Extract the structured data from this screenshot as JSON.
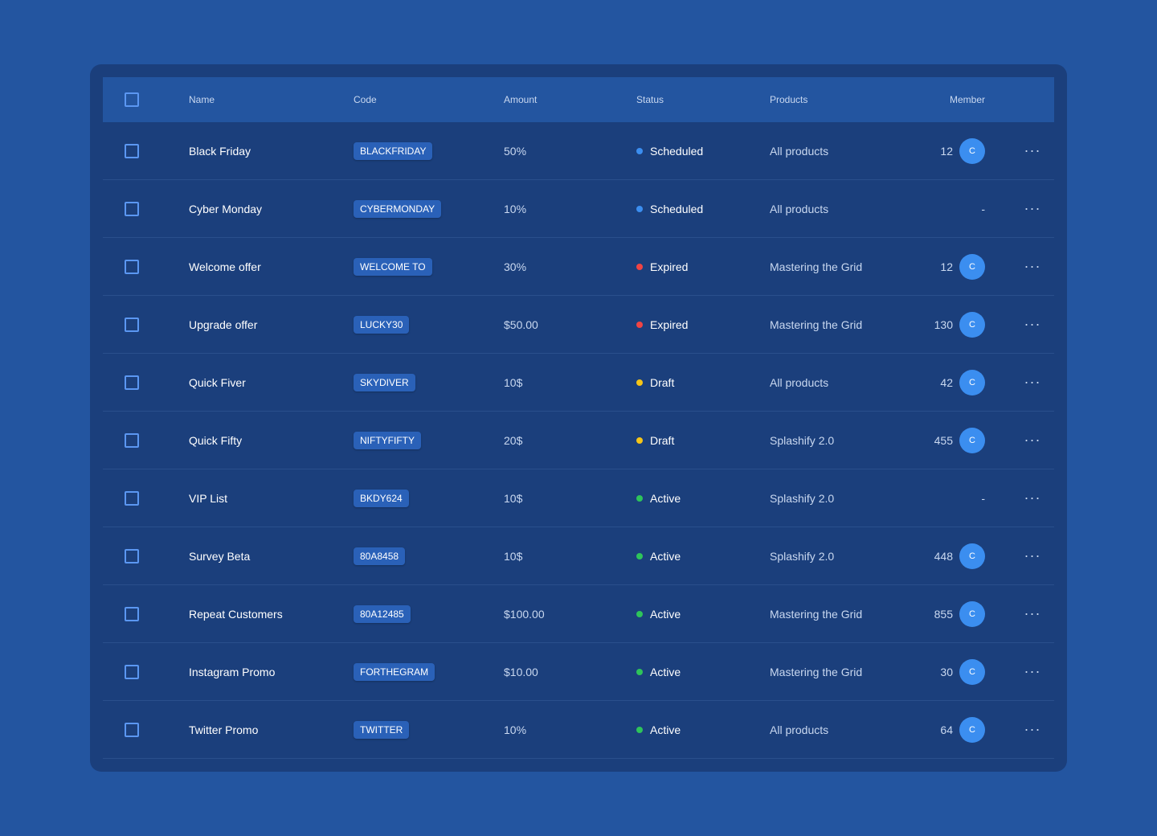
{
  "colors": {
    "page_bg": "#2355a0",
    "card_bg": "#1b3f7c",
    "header_bg": "#2355a0",
    "accent": "#3b8ef0",
    "scheduled": "#3b8ef0",
    "expired": "#f04444",
    "draft": "#f5c518",
    "active": "#2ec45a"
  },
  "columns": {
    "name": "Name",
    "code": "Code",
    "amount": "Amount",
    "status": "Status",
    "products": "Products",
    "member": "Member"
  },
  "rows": [
    {
      "name": "Black Friday",
      "code": "BLACKFRIDAY",
      "amount": "50%",
      "status": "Scheduled",
      "status_color": "scheduled",
      "products": "All products",
      "member_count": "12",
      "avatar": "C"
    },
    {
      "name": "Cyber Monday",
      "code": "CYBERMONDAY",
      "amount": "10%",
      "status": "Scheduled",
      "status_color": "scheduled",
      "products": "All products",
      "member_count": "-",
      "avatar": null
    },
    {
      "name": "Welcome offer",
      "code": "WELCOME TO",
      "amount": "30%",
      "status": "Expired",
      "status_color": "expired",
      "products": "Mastering the Grid",
      "member_count": "12",
      "avatar": "C"
    },
    {
      "name": "Upgrade offer",
      "code": "LUCKY30",
      "amount": "$50.00",
      "status": "Expired",
      "status_color": "expired",
      "products": "Mastering the Grid",
      "member_count": "130",
      "avatar": "C"
    },
    {
      "name": "Quick Fiver",
      "code": "SKYDIVER",
      "amount": "10$",
      "status": "Draft",
      "status_color": "draft",
      "products": "All products",
      "member_count": "42",
      "avatar": "C"
    },
    {
      "name": "Quick Fifty",
      "code": "NIFTYFIFTY",
      "amount": "20$",
      "status": "Draft",
      "status_color": "draft",
      "products": "Splashify 2.0",
      "member_count": "455",
      "avatar": "C"
    },
    {
      "name": "VIP List",
      "code": "BKDY624",
      "amount": "10$",
      "status": "Active",
      "status_color": "active",
      "products": "Splashify 2.0",
      "member_count": "-",
      "avatar": null
    },
    {
      "name": "Survey Beta",
      "code": "80A8458",
      "amount": "10$",
      "status": "Active",
      "status_color": "active",
      "products": "Splashify 2.0",
      "member_count": "448",
      "avatar": "C"
    },
    {
      "name": "Repeat Customers",
      "code": "80A12485",
      "amount": "$100.00",
      "status": "Active",
      "status_color": "active",
      "products": "Mastering the Grid",
      "member_count": "855",
      "avatar": "C"
    },
    {
      "name": "Instagram Promo",
      "code": "FORTHEGRAM",
      "amount": "$10.00",
      "status": "Active",
      "status_color": "active",
      "products": "Mastering the Grid",
      "member_count": "30",
      "avatar": "C"
    },
    {
      "name": "Twitter Promo",
      "code": "TWITTER",
      "amount": "10%",
      "status": "Active",
      "status_color": "active",
      "products": "All products",
      "member_count": "64",
      "avatar": "C"
    }
  ],
  "icons": {
    "row_menu": "more-horizontal-icon",
    "checkbox": "checkbox-icon"
  },
  "glyphs": {
    "more": "···"
  }
}
